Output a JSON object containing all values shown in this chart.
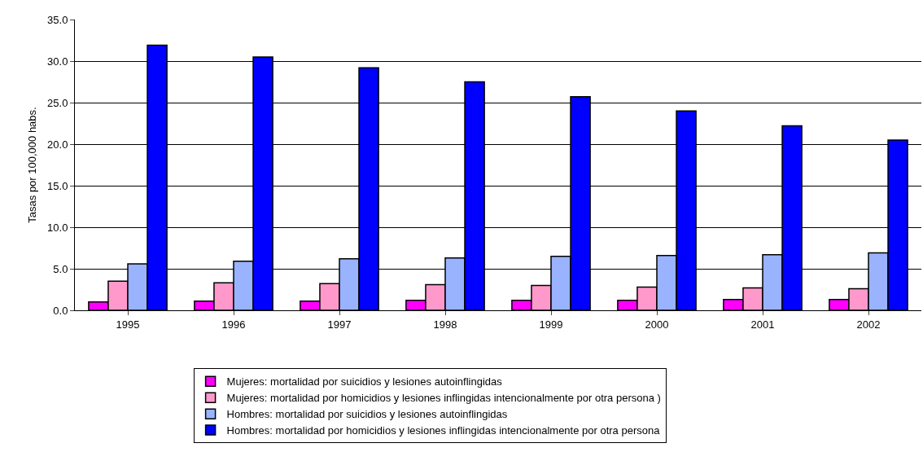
{
  "chart_data": {
    "type": "bar",
    "ylabel": "Tasas por 100,000 habs.",
    "categories": [
      "1995",
      "1996",
      "1997",
      "1998",
      "1999",
      "2000",
      "2001",
      "2002"
    ],
    "series": [
      {
        "name": "Mujeres: mortalidad por suicidios y lesiones autoinflingidas",
        "color": "#ff00ff",
        "values": [
          1.0,
          1.1,
          1.1,
          1.2,
          1.2,
          1.2,
          1.3,
          1.3
        ]
      },
      {
        "name": "Mujeres: mortalidad por homicidios y lesiones inflingidas intencionalmente por otra persona )",
        "color": "#ff99cc",
        "values": [
          3.5,
          3.3,
          3.2,
          3.1,
          3.0,
          2.8,
          2.7,
          2.6
        ]
      },
      {
        "name": "Hombres: mortalidad por suicidios y lesiones autoinflingidas",
        "color": "#99b3ff",
        "values": [
          5.6,
          5.9,
          6.2,
          6.3,
          6.5,
          6.6,
          6.7,
          6.9
        ]
      },
      {
        "name": "Hombres: mortalidad por homicidios y lesiones inflingidas intencionalmente por otra persona",
        "color": "#0000ff",
        "values": [
          31.9,
          30.5,
          29.2,
          27.5,
          25.7,
          24.0,
          22.2,
          20.5
        ]
      }
    ],
    "ylim": [
      0,
      35
    ],
    "yticks": [
      {
        "value": 0,
        "label": "0.0"
      },
      {
        "value": 5,
        "label": "5.0"
      },
      {
        "value": 10,
        "label": "10.0"
      },
      {
        "value": 15,
        "label": "15.0"
      },
      {
        "value": 20,
        "label": "20.0"
      },
      {
        "value": 25,
        "label": "25.0"
      },
      {
        "value": 30,
        "label": "30.0"
      },
      {
        "value": 35,
        "label": "35.0"
      }
    ],
    "grid": "y",
    "legend": "bottom"
  }
}
